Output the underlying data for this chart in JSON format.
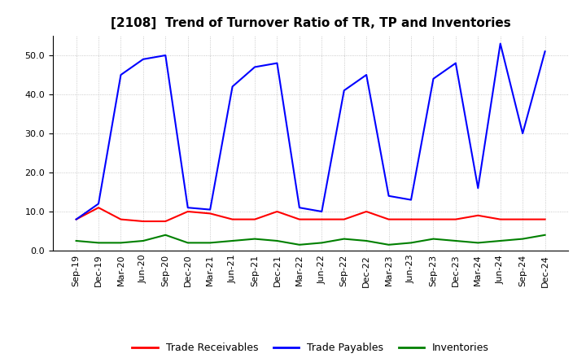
{
  "title": "[2108]  Trend of Turnover Ratio of TR, TP and Inventories",
  "x_labels": [
    "Sep-19",
    "Dec-19",
    "Mar-20",
    "Jun-20",
    "Sep-20",
    "Dec-20",
    "Mar-21",
    "Jun-21",
    "Sep-21",
    "Dec-21",
    "Mar-22",
    "Jun-22",
    "Sep-22",
    "Dec-22",
    "Mar-23",
    "Jun-23",
    "Sep-23",
    "Dec-23",
    "Mar-24",
    "Jun-24",
    "Sep-24",
    "Dec-24"
  ],
  "trade_receivables": [
    8.0,
    11.0,
    8.0,
    7.5,
    7.5,
    10.0,
    9.5,
    8.0,
    8.0,
    10.0,
    8.0,
    8.0,
    8.0,
    10.0,
    8.0,
    8.0,
    8.0,
    8.0,
    9.0,
    8.0,
    8.0,
    8.0
  ],
  "trade_payables": [
    8.0,
    12.0,
    45.0,
    49.0,
    50.0,
    11.0,
    10.5,
    42.0,
    47.0,
    48.0,
    11.0,
    10.0,
    41.0,
    45.0,
    14.0,
    13.0,
    44.0,
    48.0,
    16.0,
    53.0,
    30.0,
    51.0
  ],
  "inventories": [
    2.5,
    2.0,
    2.0,
    2.5,
    4.0,
    2.0,
    2.0,
    2.5,
    3.0,
    2.5,
    1.5,
    2.0,
    3.0,
    2.5,
    1.5,
    2.0,
    3.0,
    2.5,
    2.0,
    2.5,
    3.0,
    4.0
  ],
  "ylim": [
    0.0,
    55.0
  ],
  "yticks": [
    0.0,
    10.0,
    20.0,
    30.0,
    40.0,
    50.0
  ],
  "color_tr": "#ff0000",
  "color_tp": "#0000ff",
  "color_inv": "#008000",
  "background_color": "#ffffff",
  "grid_color": "#bbbbbb",
  "legend_labels": [
    "Trade Receivables",
    "Trade Payables",
    "Inventories"
  ],
  "title_fontsize": 11,
  "tick_fontsize": 8,
  "legend_fontsize": 9,
  "linewidth": 1.5
}
